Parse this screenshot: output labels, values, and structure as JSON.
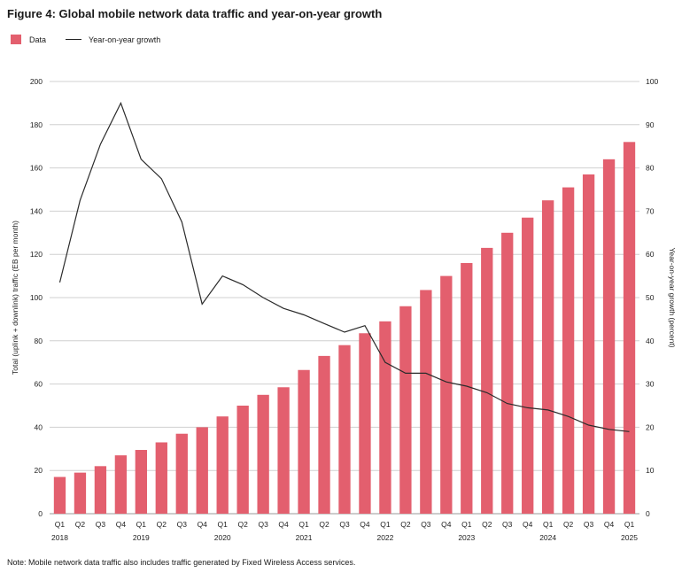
{
  "figure": {
    "title": "Figure 4: Global mobile network data traffic and year-on-year growth",
    "note": "Note: Mobile network data traffic also includes traffic generated by Fixed Wireless Access services."
  },
  "colors": {
    "bar": "#e35f6e",
    "line": "#2b2b2b",
    "grid": "#d0d0d0"
  },
  "chart_data": {
    "type": "bar",
    "title": "Figure 4: Global mobile network data traffic and year-on-year growth",
    "legend": {
      "position": "top-left",
      "entries": [
        "Data",
        "Year-on-year growth"
      ]
    },
    "grid": true,
    "ylabel": "Total (uplink + downlink) traffic (EB per month)",
    "y2label": "Year-on-year growth (percent)",
    "ylim": [
      0,
      200
    ],
    "y2lim": [
      0,
      100
    ],
    "yticks": [
      0,
      20,
      40,
      60,
      80,
      100,
      120,
      140,
      160,
      180,
      200
    ],
    "y2ticks": [
      0,
      10,
      20,
      30,
      40,
      50,
      60,
      70,
      80,
      90,
      100
    ],
    "categories": [
      "Q1",
      "Q2",
      "Q3",
      "Q4",
      "Q1",
      "Q2",
      "Q3",
      "Q4",
      "Q1",
      "Q2",
      "Q3",
      "Q4",
      "Q1",
      "Q2",
      "Q3",
      "Q4",
      "Q1",
      "Q2",
      "Q3",
      "Q4",
      "Q1",
      "Q2",
      "Q3",
      "Q4",
      "Q1",
      "Q2",
      "Q3",
      "Q4",
      "Q1"
    ],
    "years": [
      {
        "label": "2018",
        "index": 0
      },
      {
        "label": "2019",
        "index": 4
      },
      {
        "label": "2020",
        "index": 8
      },
      {
        "label": "2021",
        "index": 12
      },
      {
        "label": "2022",
        "index": 16
      },
      {
        "label": "2023",
        "index": 20
      },
      {
        "label": "2024",
        "index": 24
      },
      {
        "label": "2025",
        "index": 28
      }
    ],
    "series": [
      {
        "name": "Data",
        "type": "bar",
        "axis": "left",
        "values": [
          17,
          19,
          22,
          27,
          29.5,
          33,
          37,
          40,
          45,
          50,
          55,
          58.5,
          66.5,
          73,
          78,
          83.5,
          89,
          96,
          103.5,
          110,
          116,
          123,
          130,
          137,
          145,
          151,
          157,
          164,
          172
        ]
      },
      {
        "name": "Year-on-year growth",
        "type": "line",
        "axis": "right",
        "values": [
          53.5,
          72.5,
          85.5,
          95,
          82,
          77.5,
          67.5,
          48.5,
          55,
          53,
          50,
          47.5,
          46,
          44,
          42,
          43.5,
          35,
          32.5,
          32.5,
          30.5,
          29.5,
          28,
          25.5,
          24.5,
          24,
          22.5,
          20.5,
          19.5,
          19
        ]
      }
    ]
  }
}
